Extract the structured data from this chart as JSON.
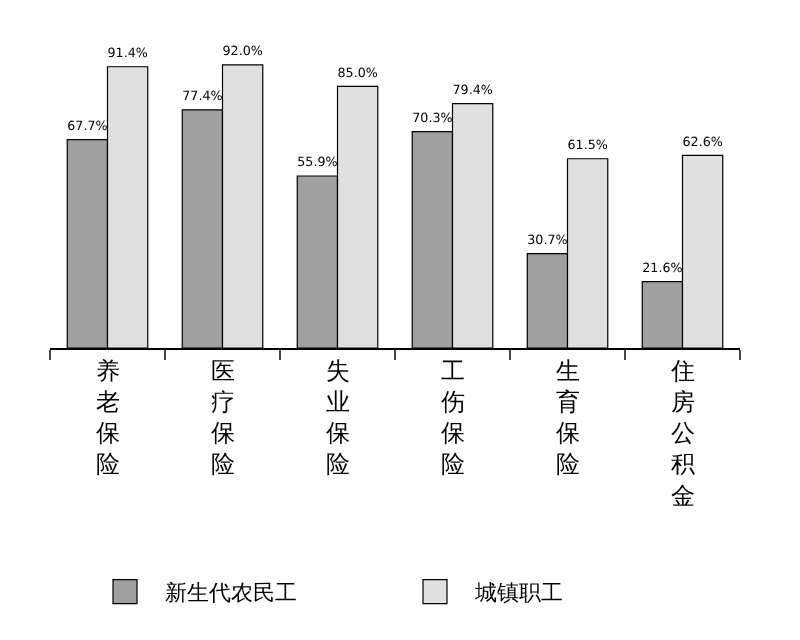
{
  "chart_data": {
    "type": "bar",
    "categories": [
      "养老保险",
      "医疗保险",
      "失业保险",
      "工伤保险",
      "生育保险",
      "住房公积金"
    ],
    "series": [
      {
        "name": "新生代农民工",
        "color": "#a0a0a0",
        "values": [
          67.7,
          77.4,
          55.9,
          70.3,
          30.7,
          21.6
        ],
        "value_labels": [
          "67.7%",
          "77.4%",
          "55.9%",
          "70.3%",
          "30.7%",
          "21.6%"
        ]
      },
      {
        "name": "城镇职工",
        "color": "#e0e0e0",
        "values": [
          91.4,
          92.0,
          85.0,
          79.4,
          61.5,
          62.6
        ],
        "value_labels": [
          "91.4%",
          "92.0%",
          "85.0%",
          "79.4%",
          "61.5%",
          "62.6%"
        ]
      }
    ],
    "legend": "bottom"
  }
}
